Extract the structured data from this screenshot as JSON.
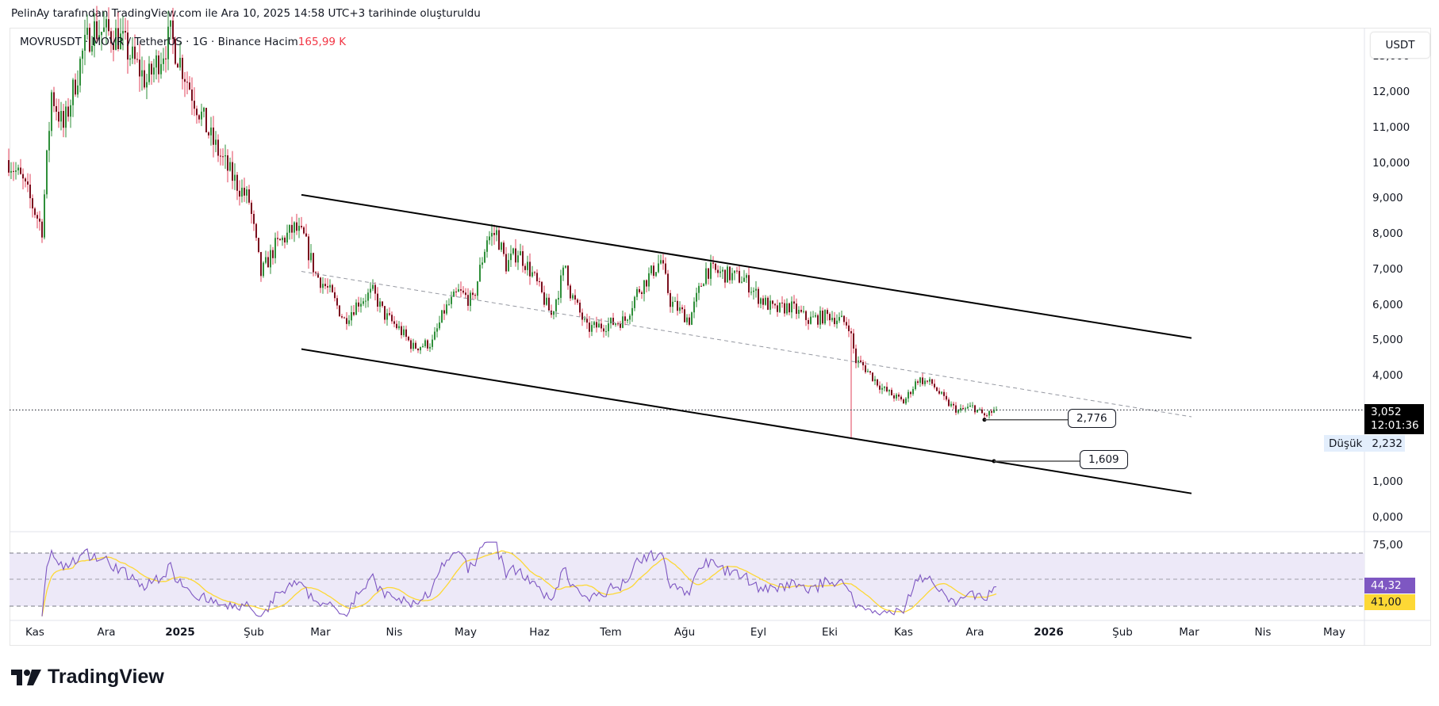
{
  "header": {
    "attribution": "PelinAy tarafından TradingView.com ile Ara 10, 2025 14:58 UTC+3 tarihinde oluşturuldu"
  },
  "symbol": {
    "line": "MOVRUSDT · MOVR / TetherUS · 1G · Binance  Hacim",
    "volume": "165,99 K"
  },
  "currency_button": "USDT",
  "logo_text": "TradingView",
  "price_axis_labels": [
    {
      "v": 13,
      "t": "13,000"
    },
    {
      "v": 12,
      "t": "12,000"
    },
    {
      "v": 11,
      "t": "11,000"
    },
    {
      "v": 10,
      "t": "10,000"
    },
    {
      "v": 9,
      "t": "9,000"
    },
    {
      "v": 8,
      "t": "8,000"
    },
    {
      "v": 7,
      "t": "7,000"
    },
    {
      "v": 6,
      "t": "6,000"
    },
    {
      "v": 5,
      "t": "5,000"
    },
    {
      "v": 4,
      "t": "4,000"
    },
    {
      "v": 1,
      "t": "1,000"
    },
    {
      "v": 0,
      "t": "0,000"
    }
  ],
  "current_price": {
    "value": 3.052,
    "label": "3,052",
    "countdown": "12:01:36"
  },
  "low_marker": {
    "label": "Düşük",
    "value": "2,232"
  },
  "rsi_axis_labels": [
    {
      "v": 75,
      "t": "75,00"
    }
  ],
  "rsi_values": {
    "rsi": "44,32",
    "ma": "41,00",
    "rsi_color": "#7e57c2",
    "ma_color": "#fdd835"
  },
  "time_axis_labels": [
    {
      "d": 0,
      "t": "Kas"
    },
    {
      "d": 30,
      "t": "Ara"
    },
    {
      "d": 61,
      "t": "2025",
      "bold": true
    },
    {
      "d": 92,
      "t": "Şub"
    },
    {
      "d": 120,
      "t": "Mar"
    },
    {
      "d": 151,
      "t": "Nis"
    },
    {
      "d": 181,
      "t": "May"
    },
    {
      "d": 212,
      "t": "Haz"
    },
    {
      "d": 242,
      "t": "Tem"
    },
    {
      "d": 273,
      "t": "Ağu"
    },
    {
      "d": 304,
      "t": "Eyl"
    },
    {
      "d": 334,
      "t": "Eki"
    },
    {
      "d": 365,
      "t": "Kas"
    },
    {
      "d": 395,
      "t": "Ara"
    },
    {
      "d": 426,
      "t": "2026",
      "bold": true
    },
    {
      "d": 457,
      "t": "Şub"
    },
    {
      "d": 485,
      "t": "Mar"
    },
    {
      "d": 516,
      "t": "Nis"
    },
    {
      "d": 546,
      "t": "May"
    }
  ],
  "annotations": [
    {
      "label": "2,776",
      "day": 399,
      "price": 2.776
    },
    {
      "label": "1,609",
      "day": 403,
      "price": 1.609
    }
  ],
  "colors": {
    "up": "#2f8f3a",
    "down_body": "#7a0f1e",
    "down_wick": "#e0405a",
    "rsi_band": "#ede9f8"
  },
  "chart_data": {
    "type": "candlestick",
    "title": "MOVRUSDT · MOVR / TetherUS · 1G · Binance",
    "x_unit": "days since 2024-11-01",
    "y_unit": "USDT",
    "ylim": [
      0,
      13.6
    ],
    "close_keypoints": [
      [
        -11,
        10.1
      ],
      [
        -5,
        9.46
      ],
      [
        3,
        8.17
      ],
      [
        7,
        12.0
      ],
      [
        12,
        11.0
      ],
      [
        20,
        13.1
      ],
      [
        24,
        13.8
      ],
      [
        35,
        13.6
      ],
      [
        47,
        12.3
      ],
      [
        57,
        13.6
      ],
      [
        66,
        12.0
      ],
      [
        74,
        10.7
      ],
      [
        82,
        9.72
      ],
      [
        90,
        8.94
      ],
      [
        95,
        6.88
      ],
      [
        101,
        7.66
      ],
      [
        109,
        8.17
      ],
      [
        113,
        7.91
      ],
      [
        118,
        6.88
      ],
      [
        124,
        6.37
      ],
      [
        130,
        5.59
      ],
      [
        136,
        6.11
      ],
      [
        142,
        6.37
      ],
      [
        147,
        5.72
      ],
      [
        153,
        5.34
      ],
      [
        159,
        4.82
      ],
      [
        167,
        4.95
      ],
      [
        172,
        5.85
      ],
      [
        178,
        6.37
      ],
      [
        184,
        6.11
      ],
      [
        190,
        7.91
      ],
      [
        194,
        8.04
      ],
      [
        198,
        7.14
      ],
      [
        203,
        7.53
      ],
      [
        209,
        6.88
      ],
      [
        217,
        5.72
      ],
      [
        223,
        7.14
      ],
      [
        225,
        6.37
      ],
      [
        232,
        5.34
      ],
      [
        240,
        5.46
      ],
      [
        248,
        5.59
      ],
      [
        253,
        6.37
      ],
      [
        263,
        7.27
      ],
      [
        267,
        6.11
      ],
      [
        275,
        5.59
      ],
      [
        282,
        7.01
      ],
      [
        290,
        6.88
      ],
      [
        298,
        6.75
      ],
      [
        304,
        6.24
      ],
      [
        311,
        5.85
      ],
      [
        317,
        5.98
      ],
      [
        325,
        5.59
      ],
      [
        334,
        5.72
      ],
      [
        342,
        5.46
      ],
      [
        345,
        4.43
      ],
      [
        348,
        4.3
      ],
      [
        356,
        3.66
      ],
      [
        365,
        3.27
      ],
      [
        371,
        3.92
      ],
      [
        377,
        3.79
      ],
      [
        383,
        3.27
      ],
      [
        388,
        3.02
      ],
      [
        394,
        3.14
      ],
      [
        399,
        2.89
      ],
      [
        404,
        3.052
      ]
    ],
    "extreme_lows": [
      [
        343,
        2.232
      ],
      [
        399,
        2.776
      ]
    ],
    "trend_channel": {
      "upper": [
        [
          112,
          9.12
        ],
        [
          486,
          5.08
        ]
      ],
      "lower": [
        [
          112,
          4.77
        ],
        [
          486,
          0.7
        ]
      ],
      "middle_dashed": [
        [
          112,
          6.96
        ],
        [
          486,
          2.86
        ]
      ]
    },
    "rsi": {
      "period": 14,
      "ma_period": 14,
      "last": 44.32,
      "ma_last": 41.0,
      "upper_band": 70,
      "middle": 50,
      "lower_band": 30
    }
  }
}
